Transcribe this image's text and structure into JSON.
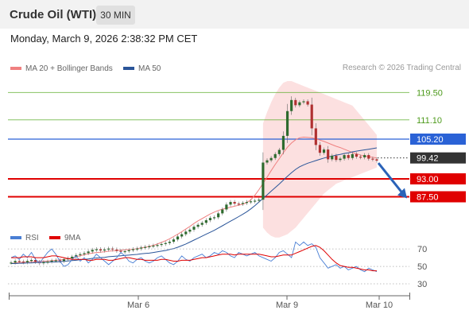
{
  "header": {
    "title": "Crude Oil (WTI)",
    "timeframe": "30 MIN"
  },
  "timestamp": "Monday, March 9, 2026 2:38:32 PM CET",
  "legend": {
    "ma20": {
      "label": "MA 20 + Bollinger Bands",
      "color": "#f08080"
    },
    "ma50": {
      "label": "MA 50",
      "color": "#2a5599"
    },
    "rsi": {
      "label": "RSI",
      "color": "#4a7fd4"
    },
    "ma9": {
      "label": "9MA",
      "color": "#e00000"
    }
  },
  "credit": "Research © 2026 Trading Central",
  "chart_data": [
    {
      "type": "candlestick",
      "price_ylim": [
        82.5,
        123.5
      ],
      "x_labels": [
        "Mar 6",
        "Mar 9",
        "Mar 10"
      ],
      "levels": [
        {
          "value": 119.5,
          "label": "119.50",
          "kind": "resistance",
          "color": "#55aa22"
        },
        {
          "value": 111.1,
          "label": "111.10",
          "kind": "resistance",
          "color": "#55aa22"
        },
        {
          "value": 105.2,
          "label": "105.20",
          "kind": "pivot",
          "color": "#2a62d6"
        },
        {
          "value": 99.42,
          "label": "99.42",
          "kind": "last",
          "color": "#333333"
        },
        {
          "value": 93.0,
          "label": "93.00",
          "kind": "support",
          "color": "#e00000"
        },
        {
          "value": 87.5,
          "label": "87.50",
          "kind": "support",
          "color": "#e00000"
        }
      ],
      "close": [
        67.3,
        67.8,
        67.6,
        67.4,
        67.8,
        68.1,
        67.5,
        67.1,
        67.4,
        67.6,
        67.9,
        68.0,
        67.8,
        68.3,
        68.6,
        69.1,
        69.6,
        69.9,
        70.2,
        70.7,
        71.2,
        71.4,
        71.0,
        71.3,
        71.6,
        71.3,
        70.9,
        70.6,
        70.8,
        71.1,
        71.4,
        71.6,
        71.9,
        72.1,
        72.3,
        72.5,
        72.7,
        73.0,
        73.3,
        73.7,
        74.4,
        75.3,
        76.0,
        76.8,
        77.4,
        78.3,
        78.9,
        79.5,
        80.3,
        81.0,
        81.2,
        82.4,
        83.6,
        85.1,
        85.9,
        85.4,
        85.3,
        85.6,
        85.9,
        86.1,
        86.3,
        86.6,
        98.0,
        98.7,
        99.4,
        100.6,
        101.9,
        106.2,
        113.8,
        117.2,
        115.6,
        116.5,
        116.8,
        115.8,
        108.5,
        103.4,
        101.0,
        102.0,
        99.0,
        100.1,
        98.8,
        99.2,
        100.3,
        99.4,
        100.6,
        99.8,
        99.6,
        100.3,
        99.2,
        99.0,
        98.6
      ],
      "ma20": [
        67.0,
        67.2,
        67.3,
        67.4,
        67.5,
        67.6,
        67.6,
        67.7,
        67.7,
        67.8,
        67.9,
        68.0,
        68.1,
        68.3,
        68.5,
        68.8,
        69.1,
        69.4,
        69.7,
        70.0,
        70.2,
        70.4,
        70.5,
        70.6,
        70.8,
        70.9,
        71.0,
        71.1,
        71.2,
        71.3,
        71.4,
        71.6,
        71.8,
        72.0,
        72.3,
        72.6,
        73.0,
        73.5,
        74.0,
        74.6,
        75.3,
        76.0,
        76.8,
        77.6,
        78.4,
        79.3,
        80.1,
        80.8,
        81.5,
        82.2,
        82.8,
        83.3,
        83.7,
        84.0,
        84.3,
        84.6,
        84.9,
        85.2,
        85.7,
        86.6,
        88.0,
        89.7,
        91.6,
        93.5,
        95.5,
        97.4,
        99.2,
        101.0,
        102.7,
        104.0,
        105.0,
        105.6,
        105.8,
        105.7,
        105.6,
        105.3,
        104.9,
        104.5,
        104.0,
        103.5,
        103.0,
        102.6,
        102.1,
        101.6,
        101.1,
        100.7,
        100.3,
        100.0,
        99.8,
        99.6,
        99.4
      ],
      "ma50": [
        67.0,
        67.0,
        67.1,
        67.1,
        67.2,
        67.2,
        67.3,
        67.3,
        67.4,
        67.4,
        67.5,
        67.5,
        67.6,
        67.7,
        67.8,
        67.9,
        68.0,
        68.2,
        68.3,
        68.4,
        68.6,
        68.7,
        68.8,
        68.9,
        69.1,
        69.2,
        69.3,
        69.4,
        69.5,
        69.6,
        69.7,
        69.8,
        70.0,
        70.1,
        70.2,
        70.4,
        70.6,
        70.8,
        71.0,
        71.3,
        71.6,
        72.0,
        72.5,
        73.0,
        73.6,
        74.2,
        74.8,
        75.4,
        76.0,
        76.6,
        77.2,
        77.9,
        78.6,
        79.3,
        80.0,
        80.7,
        81.4,
        82.1,
        82.9,
        83.8,
        84.8,
        85.9,
        87.0,
        88.1,
        89.2,
        90.3,
        91.4,
        92.6,
        93.8,
        94.9,
        95.9,
        96.7,
        97.3,
        97.8,
        98.2,
        98.6,
        99.0,
        99.4,
        99.7,
        100.0,
        100.3,
        100.5,
        100.8,
        101.0,
        101.3,
        101.5,
        101.7,
        101.9,
        102.1,
        102.3,
        102.5
      ],
      "bb_upper": [
        null,
        null,
        null,
        null,
        null,
        null,
        null,
        null,
        null,
        null,
        null,
        null,
        null,
        null,
        null,
        null,
        null,
        null,
        null,
        null,
        null,
        null,
        null,
        null,
        null,
        null,
        null,
        null,
        null,
        null,
        null,
        null,
        null,
        null,
        null,
        null,
        null,
        null,
        null,
        null,
        null,
        null,
        null,
        null,
        null,
        null,
        null,
        null,
        null,
        null,
        null,
        null,
        null,
        null,
        null,
        null,
        null,
        null,
        null,
        null,
        null,
        null,
        110.0,
        113.5,
        116.5,
        119.0,
        121.0,
        122.5,
        123.0,
        123.0,
        122.5,
        122.0,
        121.5,
        121.0,
        120.5,
        120.0,
        119.5,
        119.0,
        118.5,
        118.0,
        117.5,
        117.0,
        116.5,
        116.0,
        115.5,
        114.0,
        112.5,
        111.0,
        109.5,
        108.0,
        106.5
      ],
      "bb_lower": [
        null,
        null,
        null,
        null,
        null,
        null,
        null,
        null,
        null,
        null,
        null,
        null,
        null,
        null,
        null,
        null,
        null,
        null,
        null,
        null,
        null,
        null,
        null,
        null,
        null,
        null,
        null,
        null,
        null,
        null,
        null,
        null,
        null,
        null,
        null,
        null,
        null,
        null,
        null,
        null,
        null,
        null,
        null,
        null,
        null,
        null,
        null,
        null,
        null,
        null,
        null,
        null,
        null,
        null,
        null,
        null,
        null,
        null,
        null,
        null,
        null,
        null,
        78.0,
        76.5,
        75.5,
        75.0,
        75.0,
        75.5,
        76.0,
        77.0,
        78.0,
        79.5,
        81.0,
        82.5,
        84.0,
        85.5,
        87.0,
        88.5,
        89.5,
        90.5,
        91.5,
        92.0,
        92.5,
        93.0,
        93.5,
        94.0,
        94.5,
        95.0,
        95.5,
        96.0,
        96.5
      ],
      "projection": {
        "from": 98.6,
        "to": 87.5
      }
    },
    {
      "type": "line",
      "series": [
        {
          "name": "RSI",
          "color": "#4a7fd4"
        },
        {
          "name": "9MA",
          "color": "#e00000"
        }
      ],
      "y_labels": [
        "70",
        "50",
        "30"
      ],
      "ylim": [
        20,
        82
      ],
      "levels": [
        70,
        50,
        30
      ],
      "rsi": [
        60,
        62,
        58,
        64,
        60,
        66,
        58,
        54,
        60,
        66,
        70,
        64,
        56,
        50,
        52,
        58,
        62,
        56,
        60,
        54,
        58,
        64,
        60,
        56,
        52,
        56,
        60,
        66,
        62,
        56,
        54,
        58,
        60,
        56,
        54,
        56,
        60,
        62,
        58,
        54,
        52,
        56,
        62,
        58,
        56,
        60,
        62,
        64,
        60,
        62,
        66,
        64,
        68,
        66,
        62,
        60,
        66,
        64,
        62,
        64,
        66,
        62,
        60,
        58,
        56,
        60,
        66,
        68,
        64,
        60,
        78,
        74,
        78,
        74,
        76,
        72,
        60,
        54,
        48,
        50,
        52,
        48,
        50,
        46,
        48,
        50,
        46,
        44,
        48,
        46,
        44
      ],
      "ma9": [
        60,
        60,
        60,
        61,
        61,
        61,
        60,
        60,
        60,
        61,
        62,
        62,
        61,
        60,
        59,
        58,
        58,
        58,
        58,
        57,
        57,
        58,
        58,
        58,
        57,
        57,
        58,
        59,
        60,
        60,
        59,
        58,
        58,
        57,
        57,
        57,
        57,
        58,
        58,
        57,
        56,
        56,
        57,
        57,
        57,
        58,
        59,
        60,
        60,
        61,
        62,
        63,
        64,
        64,
        64,
        63,
        64,
        64,
        64,
        64,
        64,
        64,
        63,
        62,
        61,
        61,
        62,
        63,
        63,
        63,
        65,
        67,
        69,
        71,
        73,
        74,
        72,
        68,
        63,
        58,
        54,
        51,
        50,
        49,
        49,
        48,
        47,
        46,
        46,
        45,
        45
      ]
    }
  ]
}
